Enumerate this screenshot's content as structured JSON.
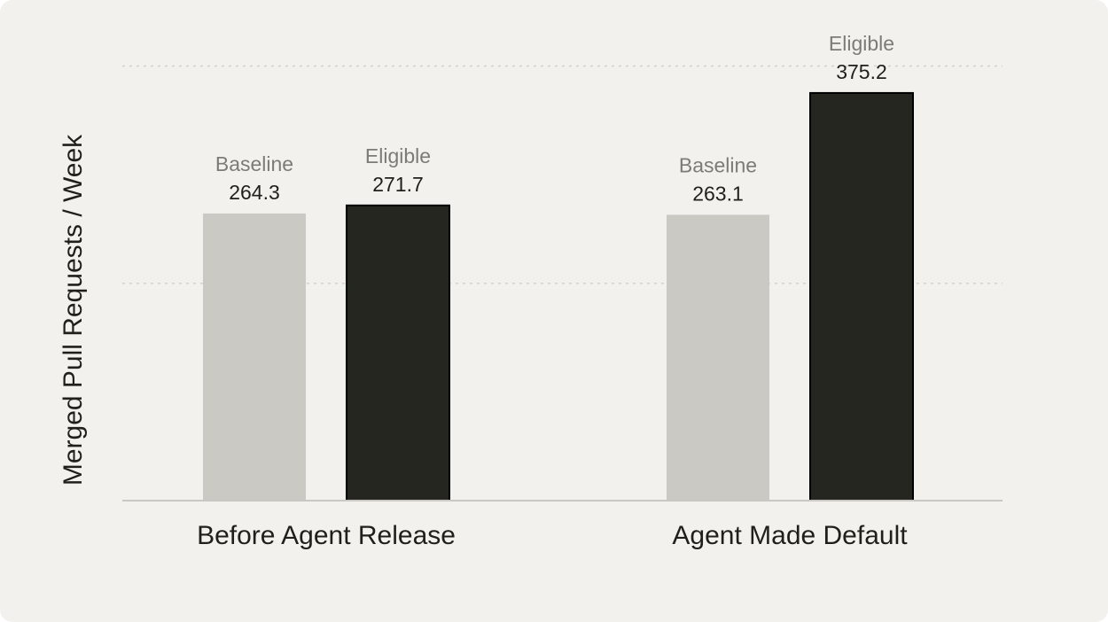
{
  "chart_data": {
    "type": "bar",
    "title": "",
    "xlabel": "",
    "ylabel": "Merged Pull Requests / Week",
    "categories": [
      "Before Agent Release",
      "Agent Made Default"
    ],
    "series": [
      {
        "name": "Baseline",
        "values": [
          264.3,
          263.1
        ],
        "color": "#cac9c4"
      },
      {
        "name": "Eligible",
        "values": [
          271.7,
          375.2
        ],
        "color": "#262620"
      }
    ],
    "value_labels": [
      [
        "264.3",
        "263.1"
      ],
      [
        "271.7",
        "375.2"
      ]
    ],
    "ylim": [
      0,
      420
    ],
    "gridlines": [
      200,
      400
    ],
    "grid": true,
    "legend": "none (series names shown above bars)"
  },
  "colors": {
    "background": "#f2f1ed",
    "grid": "#d3d2cd",
    "axis": "#c9c8c3",
    "text": "#1f1f1b",
    "muted_text": "#7c7b77"
  }
}
